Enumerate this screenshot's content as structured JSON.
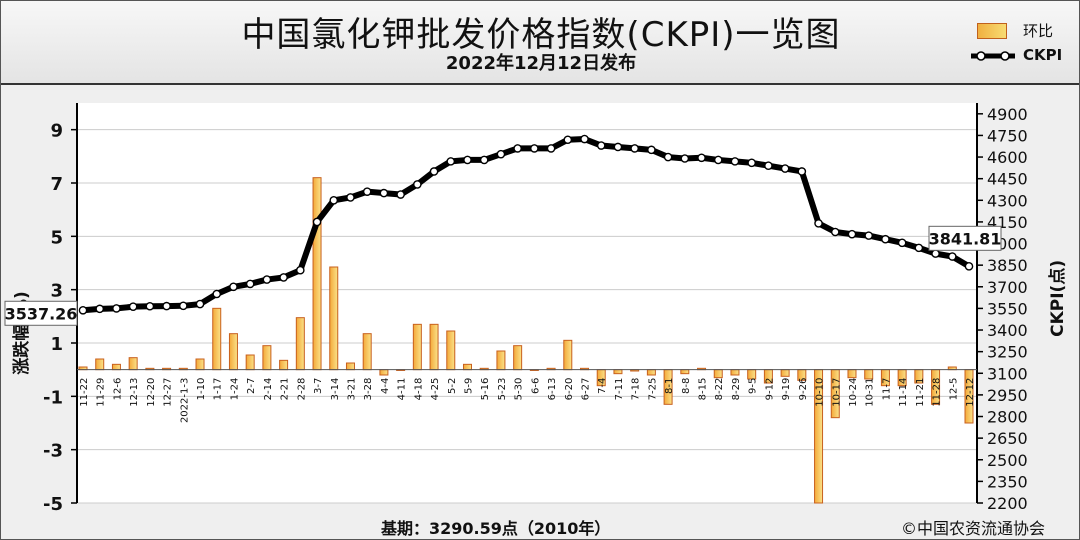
{
  "header": {
    "title": "中国氯化钾批发价格指数(CKPI)一览图",
    "subtitle": "2022年12月12日发布"
  },
  "legend": {
    "bar_label": "环比",
    "line_label": "CKPI",
    "placement": "top-right"
  },
  "footer": {
    "base": "基期：3290.59点（2010年）",
    "copyright": "©中国农资流通协会"
  },
  "colors": {
    "bar_fill": "#f5c24a",
    "bar_edge": "#c8601e",
    "line": "#000000",
    "marker_fill": "#ffffff",
    "grid": "#cccccc",
    "background": "#efefef"
  },
  "chart_data": {
    "type": "bar+line",
    "x_tick_labels": [
      "11-22",
      "11-29",
      "12-6",
      "12-13",
      "12-20",
      "12-27",
      "2022-1-3",
      "1-10",
      "1-17",
      "1-24",
      "2-7",
      "2-14",
      "2-21",
      "2-28",
      "3-7",
      "3-14",
      "3-21",
      "3-28",
      "4-4",
      "4-11",
      "4-18",
      "4-25",
      "5-2",
      "5-9",
      "5-16",
      "5-23",
      "5-30",
      "6-6",
      "6-13",
      "6-20",
      "6-27",
      "7-4",
      "7-11",
      "7-18",
      "7-25",
      "8-1",
      "8-8",
      "8-15",
      "8-22",
      "8-29",
      "9-5",
      "9-12",
      "9-19",
      "9-26",
      "10-10",
      "10-17",
      "10-24",
      "10-31",
      "11-7",
      "11-14",
      "11-21",
      "11-28",
      "12-5",
      "12-12"
    ],
    "y_left": {
      "label": "涨跌幅(%)",
      "ticks": [
        -5,
        -3,
        -1,
        1,
        3,
        5,
        7,
        9
      ],
      "range": [
        -5,
        10
      ]
    },
    "y_right": {
      "label": "CKPI(点)",
      "ticks": [
        2200,
        2350,
        2500,
        2650,
        2800,
        2950,
        3100,
        3250,
        3400,
        3550,
        3700,
        3850,
        4000,
        4150,
        4300,
        4450,
        4600,
        4750,
        4900
      ],
      "range": [
        2200,
        4975
      ]
    },
    "series": [
      {
        "name": "环比",
        "type": "bar",
        "axis": "left",
        "values": [
          0.1,
          0.4,
          0.2,
          0.45,
          0.05,
          0.05,
          0.05,
          0.4,
          2.3,
          1.35,
          0.55,
          0.9,
          0.35,
          1.95,
          7.2,
          3.85,
          0.25,
          1.35,
          -0.2,
          0.0,
          1.7,
          1.7,
          1.45,
          0.2,
          0.05,
          0.7,
          0.9,
          0.0,
          0.05,
          1.1,
          0.05,
          -0.6,
          -0.15,
          -0.05,
          -0.2,
          -1.3,
          -0.15,
          0.05,
          -0.3,
          -0.2,
          -0.35,
          -0.5,
          -0.25,
          -0.4,
          -5.0,
          -1.8,
          -0.3,
          -0.35,
          -0.6,
          -0.6,
          -0.5,
          -1.3,
          0.1,
          -2.0
        ]
      },
      {
        "name": "CKPI",
        "type": "line",
        "axis": "right",
        "values": [
          3537,
          3547,
          3550,
          3562,
          3565,
          3566,
          3568,
          3580,
          3650,
          3700,
          3720,
          3750,
          3765,
          3815,
          4150,
          4300,
          4320,
          4360,
          4350,
          4340,
          4410,
          4500,
          4570,
          4580,
          4580,
          4620,
          4660,
          4660,
          4660,
          4720,
          4725,
          4680,
          4670,
          4660,
          4650,
          4600,
          4590,
          4595,
          4580,
          4570,
          4560,
          4540,
          4520,
          4500,
          4140,
          4080,
          4065,
          4055,
          4030,
          4005,
          3970,
          3930,
          3910,
          3842
        ]
      }
    ],
    "point_labels": [
      {
        "index": 0,
        "text": "3537.26"
      },
      {
        "index": 53,
        "text": "3841.81"
      }
    ],
    "grid": true
  }
}
